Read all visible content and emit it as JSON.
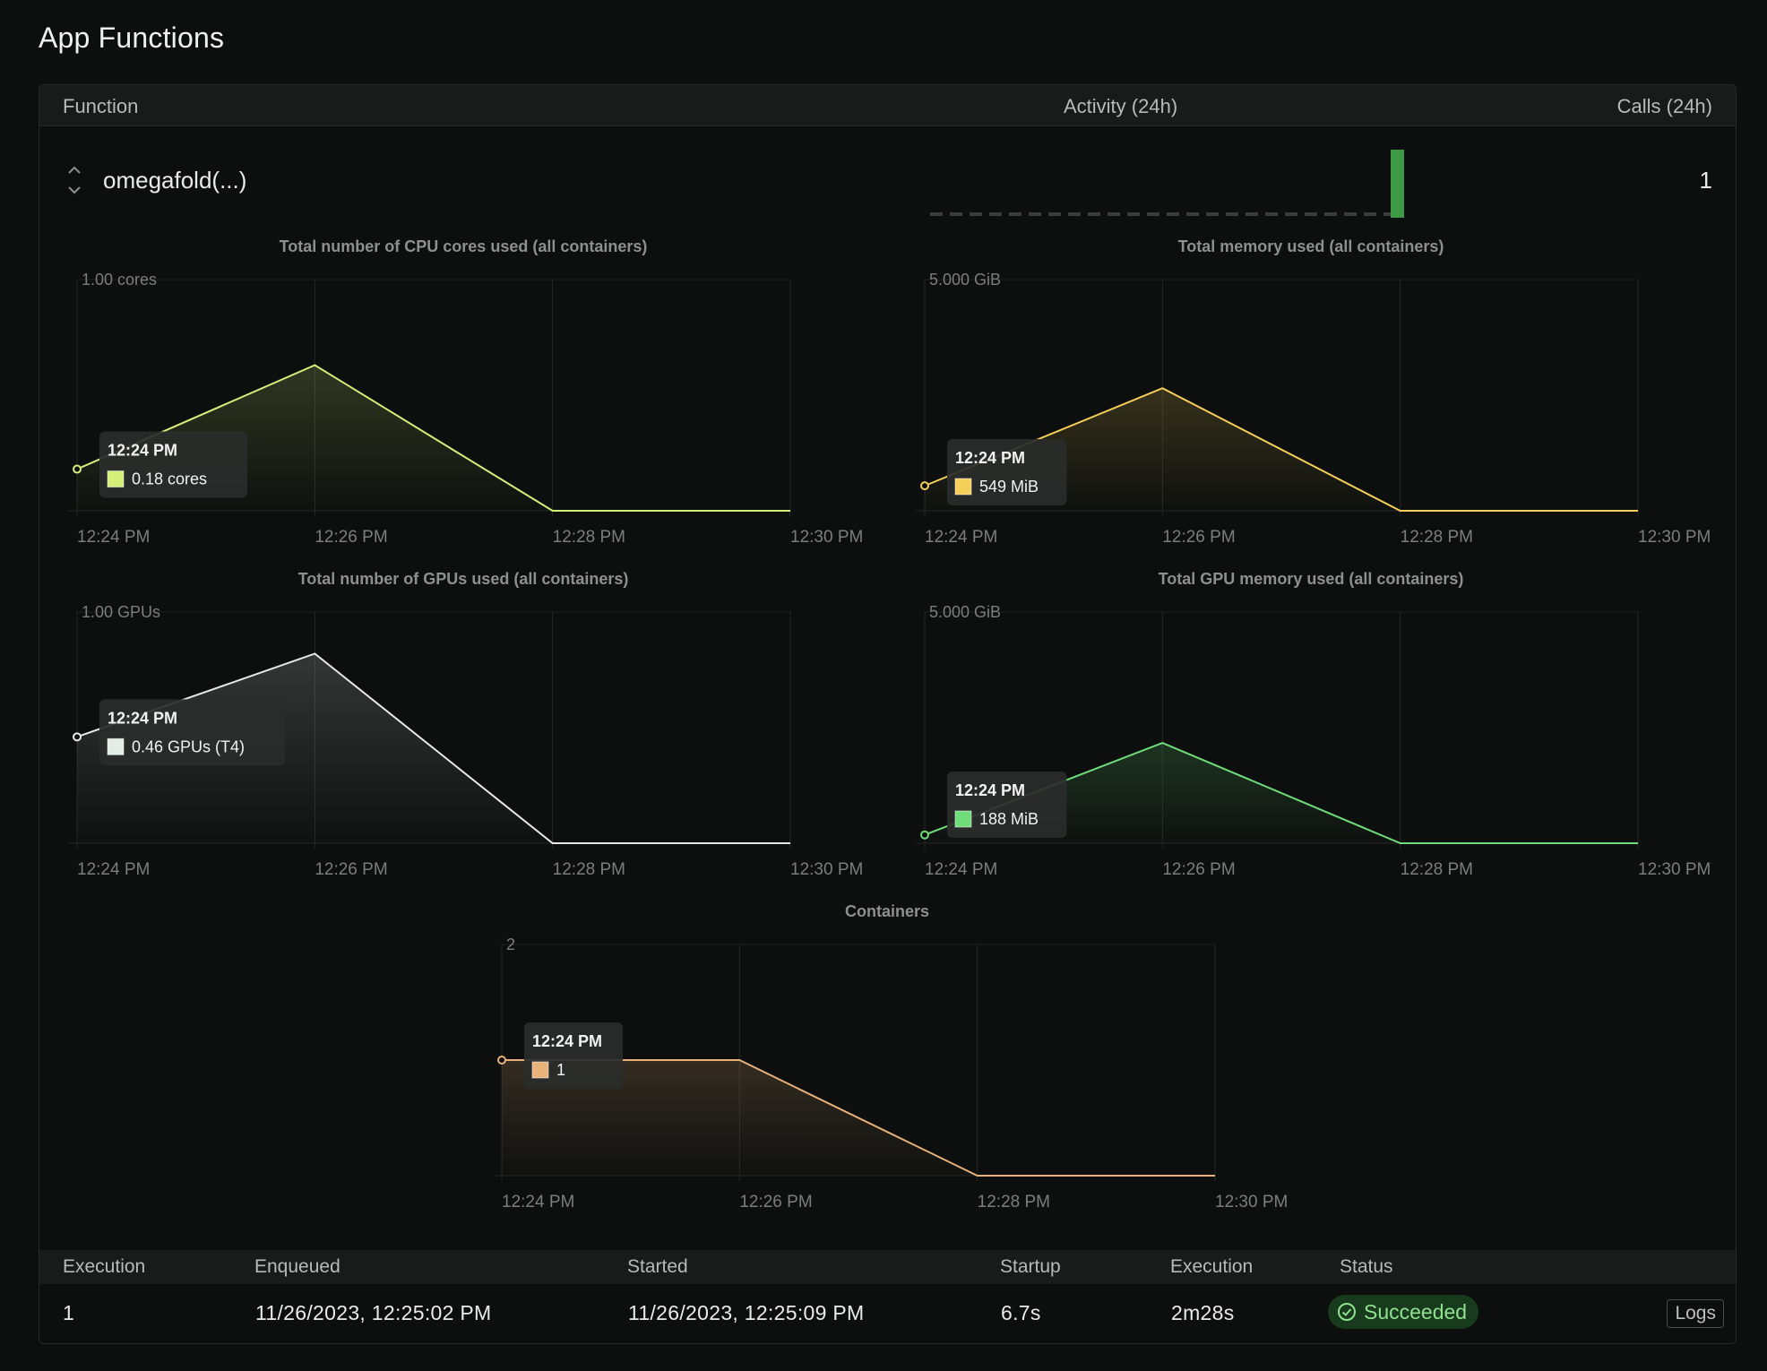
{
  "page": {
    "title": "App Functions"
  },
  "table_header": {
    "function": "Function",
    "activity": "Activity (24h)",
    "calls": "Calls (24h)"
  },
  "function_row": {
    "name": "omegafold(...)",
    "calls": "1"
  },
  "colors": {
    "cpu": "#d4ef7a",
    "memory": "#f5cf5a",
    "gpu": "#e4ece8",
    "gpu_memory": "#6fdc7a",
    "containers": "#e8b27a",
    "activity_bar": "#3c9a44"
  },
  "chart_data": [
    {
      "id": "cpu",
      "type": "area",
      "title": "Total number of CPU cores used (all containers)",
      "y_top_label": "1.00 cores",
      "ylim": [
        0,
        1
      ],
      "x": [
        0,
        1,
        2,
        3
      ],
      "tick_labels": [
        "12:24 PM",
        "12:26 PM",
        "12:28 PM",
        "12:30 PM"
      ],
      "series": [
        {
          "name": "cores",
          "x": [
            -0.0,
            1,
            2,
            3
          ],
          "values": [
            0.18,
            0.63,
            0,
            0
          ]
        }
      ],
      "tooltip": {
        "time": "12:24 PM",
        "value": "0.18 cores"
      }
    },
    {
      "id": "memory",
      "type": "area",
      "title": "Total memory used (all containers)",
      "y_top_label": "5.000 GiB",
      "ylim": [
        0,
        5
      ],
      "x": [
        0,
        1,
        2,
        3
      ],
      "tick_labels": [
        "12:24 PM",
        "12:26 PM",
        "12:28 PM",
        "12:30 PM"
      ],
      "series": [
        {
          "name": "memory",
          "x": [
            0,
            1,
            2,
            3
          ],
          "values": [
            0.54,
            2.65,
            0,
            0
          ]
        }
      ],
      "tooltip": {
        "time": "12:24 PM",
        "value": "549 MiB"
      }
    },
    {
      "id": "gpu",
      "type": "area",
      "title": "Total number of GPUs used (all containers)",
      "y_top_label": "1.00 GPUs",
      "ylim": [
        0,
        1
      ],
      "x": [
        0,
        1,
        2,
        3
      ],
      "tick_labels": [
        "12:24 PM",
        "12:26 PM",
        "12:28 PM",
        "12:30 PM"
      ],
      "series": [
        {
          "name": "gpus",
          "x": [
            0,
            1,
            2,
            3
          ],
          "values": [
            0.46,
            0.82,
            0,
            0
          ]
        }
      ],
      "tooltip": {
        "time": "12:24 PM",
        "value": "0.46 GPUs (T4)"
      }
    },
    {
      "id": "gpu_memory",
      "type": "area",
      "title": "Total GPU memory used (all containers)",
      "y_top_label": "5.000 GiB",
      "ylim": [
        0,
        5
      ],
      "x": [
        0,
        1,
        2,
        3
      ],
      "tick_labels": [
        "12:24 PM",
        "12:26 PM",
        "12:28 PM",
        "12:30 PM"
      ],
      "series": [
        {
          "name": "gpu_memory",
          "x": [
            0,
            1,
            2,
            3
          ],
          "values": [
            0.18,
            2.17,
            0,
            0
          ]
        }
      ],
      "tooltip": {
        "time": "12:24 PM",
        "value": "188 MiB"
      }
    },
    {
      "id": "containers",
      "type": "area",
      "title": "Containers",
      "y_top_label": "2",
      "ylim": [
        0,
        2
      ],
      "x": [
        0,
        1,
        2,
        3
      ],
      "tick_labels": [
        "12:24 PM",
        "12:26 PM",
        "12:28 PM",
        "12:30 PM"
      ],
      "series": [
        {
          "name": "containers",
          "x": [
            0,
            1,
            2,
            3
          ],
          "values": [
            1,
            1,
            0,
            0
          ]
        }
      ],
      "tooltip": {
        "time": "12:24 PM",
        "value": "1"
      }
    }
  ],
  "activity": {
    "baseline_segments": 24,
    "bar_value": 1
  },
  "executions": {
    "headers": [
      "Execution",
      "Enqueued",
      "Started",
      "Startup",
      "Execution",
      "Status"
    ],
    "rows": [
      {
        "id": "1",
        "enqueued": "11/26/2023, 12:25:02 PM",
        "started": "11/26/2023, 12:25:09 PM",
        "startup": "6.7s",
        "execution": "2m28s",
        "status": "Succeeded",
        "logs_label": "Logs"
      }
    ]
  }
}
